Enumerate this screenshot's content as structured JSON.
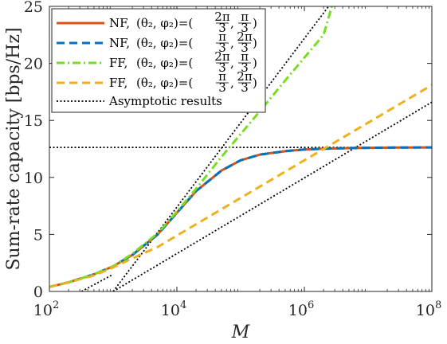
{
  "chart_data": {
    "type": "line",
    "xlabel": "M",
    "ylabel": "Sum-rate capacity [bps/Hz]",
    "x_scale": "log",
    "xlim": [
      100,
      100000000
    ],
    "ylim": [
      0,
      25
    ],
    "x_ticks": [
      {
        "value": 100,
        "base": "10",
        "exp": "2"
      },
      {
        "value": 10000,
        "base": "10",
        "exp": "4"
      },
      {
        "value": 1000000,
        "base": "10",
        "exp": "6"
      },
      {
        "value": 100000000,
        "base": "10",
        "exp": "8"
      }
    ],
    "y_ticks": [
      0,
      5,
      10,
      15,
      20,
      25
    ],
    "legend_position": "top-left",
    "series": [
      {
        "name": "NF, (θ2, φ2)=(2π/3, π/3)",
        "legend": {
          "prefix": "NF,",
          "a_num": "2π",
          "a_den": "3",
          "b_num": "π",
          "b_den": "3"
        },
        "color": "#D95319",
        "dash": "solid",
        "x": [
          100,
          200,
          500,
          1000,
          2000,
          5000,
          10000,
          20000,
          50000,
          100000,
          200000,
          500000,
          1000000,
          2000000,
          5000000,
          10000000,
          30000000,
          100000000
        ],
        "y": [
          0.4,
          0.8,
          1.5,
          2.2,
          3.2,
          5.0,
          6.9,
          8.8,
          10.6,
          11.5,
          12.0,
          12.3,
          12.45,
          12.52,
          12.57,
          12.6,
          12.62,
          12.63
        ]
      },
      {
        "name": "NF, (θ2, φ2)=(π/3, 2π/3)",
        "legend": {
          "prefix": "NF,",
          "a_num": "π",
          "a_den": "3",
          "b_num": "2π",
          "b_den": "3"
        },
        "color": "#0072BD",
        "dash": "dashed",
        "x": [
          100,
          200,
          500,
          1000,
          2000,
          5000,
          10000,
          20000,
          50000,
          100000,
          200000,
          500000,
          1000000,
          2000000,
          5000000,
          10000000,
          30000000,
          100000000
        ],
        "y": [
          0.4,
          0.8,
          1.5,
          2.2,
          3.2,
          5.0,
          6.9,
          8.8,
          10.6,
          11.5,
          12.0,
          12.3,
          12.45,
          12.52,
          12.57,
          12.6,
          12.62,
          12.63
        ]
      },
      {
        "name": "FF, (θ2, φ2)=(2π/3, π/3)",
        "legend": {
          "prefix": "FF,",
          "a_num": "2π",
          "a_den": "3",
          "b_num": "π",
          "b_den": "3"
        },
        "color": "#77DD22",
        "dash": "dashdot",
        "x": [
          100,
          200,
          500,
          1000,
          2000,
          5000,
          10000,
          20000,
          50000,
          100000,
          200000,
          500000,
          1000000,
          2000000,
          2700000
        ],
        "y": [
          0.4,
          0.8,
          1.5,
          2.2,
          3.3,
          5.1,
          7.0,
          9.0,
          11.8,
          13.8,
          15.8,
          18.5,
          20.5,
          22.5,
          25.0
        ]
      },
      {
        "name": "FF, (θ2, φ2)=(π/3, 2π/3)",
        "legend": {
          "prefix": "FF,",
          "a_num": "π",
          "a_den": "3",
          "b_num": "2π",
          "b_den": "3"
        },
        "color": "#EDB120",
        "dash": "dashed",
        "x": [
          100,
          200,
          500,
          1000,
          2000,
          5000,
          10000,
          100000,
          1000000,
          10000000,
          100000000
        ],
        "y": [
          0.4,
          0.8,
          1.4,
          2.1,
          2.9,
          3.9,
          4.9,
          8.2,
          11.5,
          14.8,
          18.1
        ]
      },
      {
        "name": "Asymptotic results",
        "legend": {
          "text": "Asymptotic results"
        },
        "color": "#000000",
        "dash": "dotted",
        "segments": [
          {
            "x": [
              100,
              100000000
            ],
            "y": [
              12.63,
              12.63
            ]
          },
          {
            "x": [
              1000,
              2400000
            ],
            "y": [
              0,
              25
            ]
          },
          {
            "x": [
              1000,
              100000000
            ],
            "y": [
              0,
              16.6
            ]
          },
          {
            "x": [
              320,
              1000
            ],
            "y": [
              0,
              1.5
            ]
          }
        ]
      }
    ]
  }
}
